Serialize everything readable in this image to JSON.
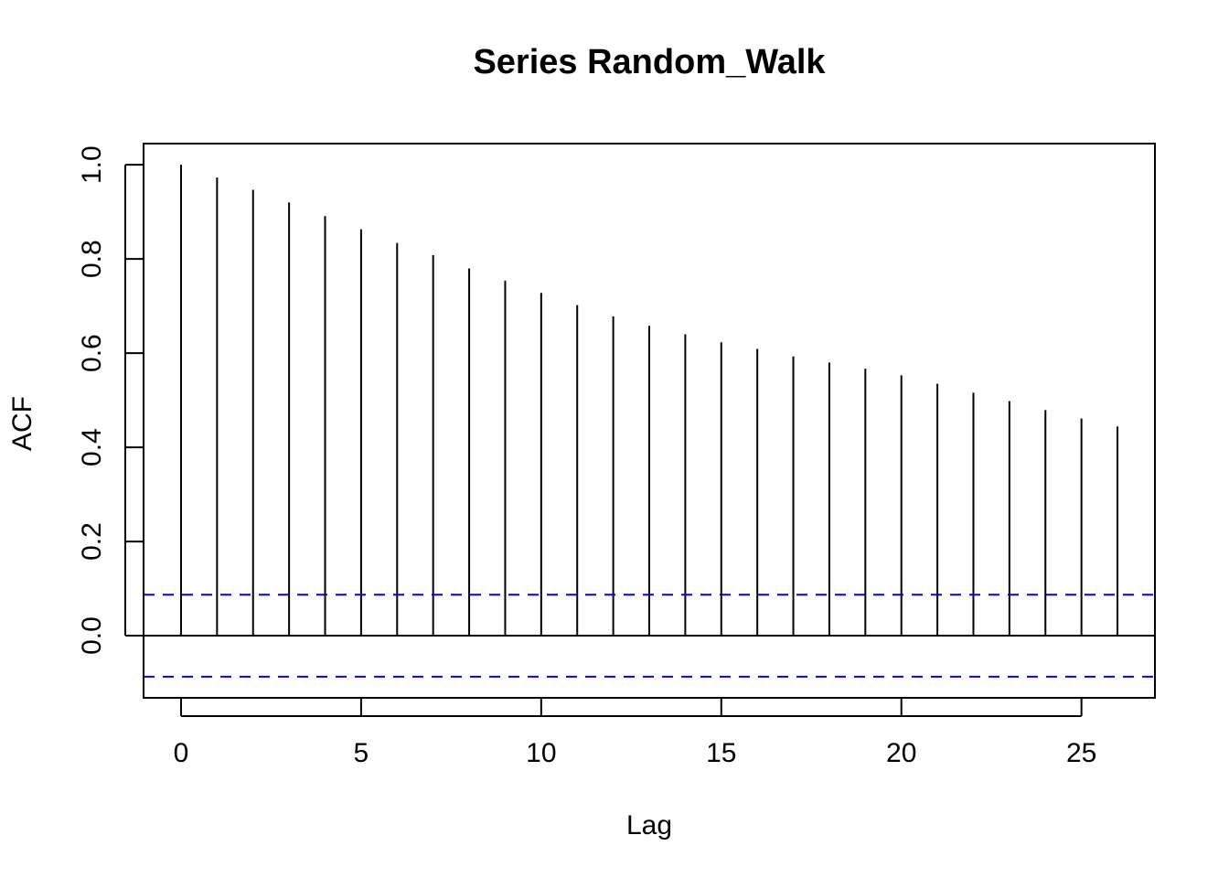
{
  "chart_data": {
    "type": "bar",
    "title": "Series  Random_Walk",
    "xlabel": "Lag",
    "ylabel": "ACF",
    "xlim": [
      -1.04,
      27.04
    ],
    "ylim": [
      -0.132,
      1.045
    ],
    "x_ticks": [
      0,
      5,
      10,
      15,
      20,
      25
    ],
    "y_ticks": [
      0.0,
      0.2,
      0.4,
      0.6,
      0.8,
      1.0
    ],
    "x_tick_labels": [
      "0",
      "5",
      "10",
      "15",
      "20",
      "25"
    ],
    "y_tick_labels": [
      "0.0",
      "0.2",
      "0.4",
      "0.6",
      "0.8",
      "1.0"
    ],
    "lags": [
      0,
      1,
      2,
      3,
      4,
      5,
      6,
      7,
      8,
      9,
      10,
      11,
      12,
      13,
      14,
      15,
      16,
      17,
      18,
      19,
      20,
      21,
      22,
      23,
      24,
      25,
      26
    ],
    "acf": [
      1.0,
      0.973,
      0.947,
      0.92,
      0.891,
      0.863,
      0.834,
      0.808,
      0.78,
      0.754,
      0.728,
      0.702,
      0.678,
      0.658,
      0.64,
      0.623,
      0.609,
      0.593,
      0.58,
      0.567,
      0.553,
      0.535,
      0.516,
      0.498,
      0.479,
      0.461,
      0.444
    ],
    "confidence_bounds": [
      0.087,
      -0.087
    ],
    "colors": {
      "bars": "#000000",
      "confidence": "#0000ff"
    },
    "grid": false,
    "legend": "none"
  }
}
